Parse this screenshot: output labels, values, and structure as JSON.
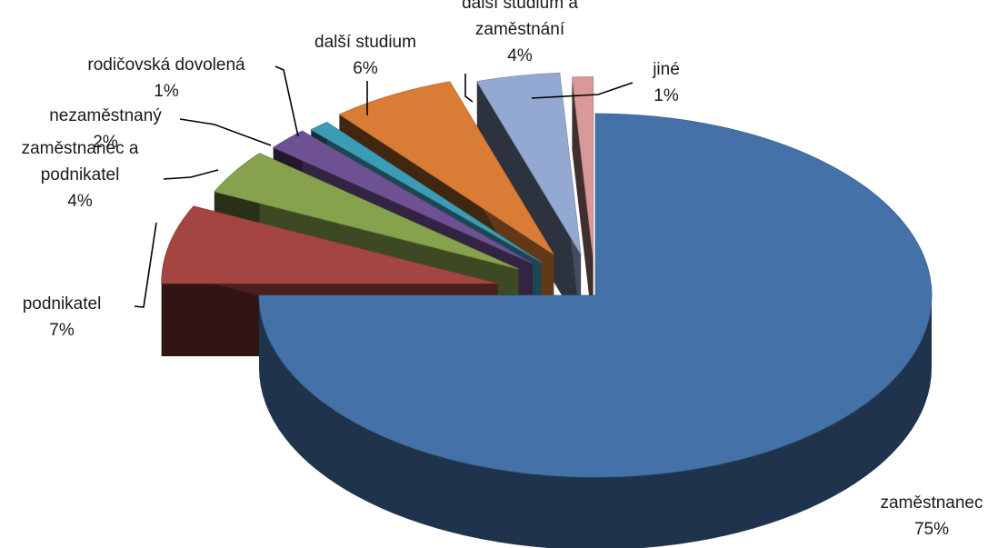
{
  "chart_data": {
    "type": "pie",
    "title": "",
    "style": "3d-exploded",
    "legend": "none",
    "slices": [
      {
        "label": "zaměstnanec",
        "label_lines": [
          "zaměstnanec"
        ],
        "value": 75,
        "pct": "75%",
        "color": "#4472a8"
      },
      {
        "label": "podnikatel",
        "label_lines": [
          "podnikatel"
        ],
        "value": 7,
        "pct": "7%",
        "color": "#a44541"
      },
      {
        "label": "zaměstnanec a podnikatel",
        "label_lines": [
          "zaměstnanec a",
          "podnikatel"
        ],
        "value": 4,
        "pct": "4%",
        "color": "#86a24d"
      },
      {
        "label": "nezaměstnaný",
        "label_lines": [
          "nezaměstnaný"
        ],
        "value": 2,
        "pct": "2%",
        "color": "#6e5193"
      },
      {
        "label": "rodičovská dovolená",
        "label_lines": [
          "rodičovská dovolená"
        ],
        "value": 1,
        "pct": "1%",
        "color": "#3c9cb6"
      },
      {
        "label": "další studium",
        "label_lines": [
          "další studium"
        ],
        "value": 6,
        "pct": "6%",
        "color": "#d97d36"
      },
      {
        "label": "další studium a zaměstnání",
        "label_lines": [
          "další studium a",
          "zaměstnání"
        ],
        "value": 4,
        "pct": "4%",
        "color": "#94a9d2"
      },
      {
        "label": "jiné",
        "label_lines": [
          "jiné"
        ],
        "value": 1,
        "pct": "1%",
        "color": "#d89998"
      }
    ]
  }
}
